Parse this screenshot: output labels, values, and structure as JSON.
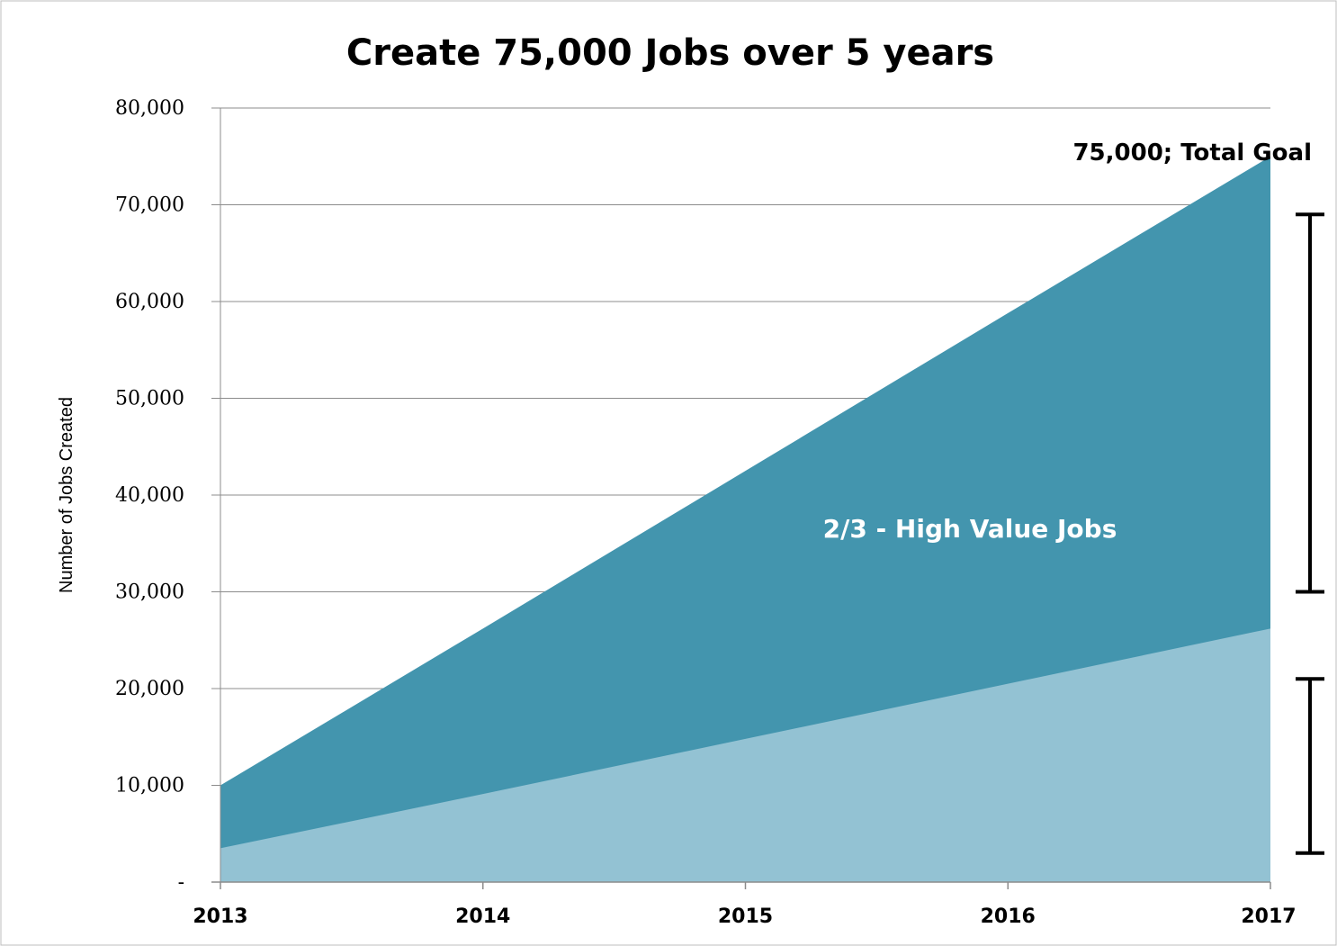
{
  "chart_data": {
    "type": "area",
    "title": "Create 75,000 Jobs over 5 years",
    "ylabel": "Number of Jobs Created",
    "xlabel": "",
    "categories": [
      "2013",
      "2014",
      "2015",
      "2016",
      "2017"
    ],
    "series": [
      {
        "values": [
          3500,
          9100,
          14800,
          20500,
          26200
        ],
        "color": "#93c2d3"
      },
      {
        "name": "2/3 - High Value Jobs",
        "values": [
          10000,
          26200,
          42500,
          58800,
          75000
        ],
        "color": "#4395ae"
      }
    ],
    "ylim": [
      0,
      80000
    ],
    "yticks": [
      {
        "value": 0,
        "label": "-"
      },
      {
        "value": 10000,
        "label": "10,000"
      },
      {
        "value": 20000,
        "label": "20,000"
      },
      {
        "value": 30000,
        "label": "30,000"
      },
      {
        "value": 40000,
        "label": "40,000"
      },
      {
        "value": 50000,
        "label": "50,000"
      },
      {
        "value": 60000,
        "label": "60,000"
      },
      {
        "value": 70000,
        "label": "70,000"
      },
      {
        "value": 80000,
        "label": "80,000"
      }
    ],
    "grid": true,
    "annotations": [
      {
        "text": "75,000; Total Goal",
        "x": "2017",
        "y": 75000
      },
      {
        "text": "2/3 - High Value Jobs",
        "x": "2015.85",
        "y": 36500
      }
    ],
    "brackets": [
      {
        "from": 30000,
        "to": 69000
      },
      {
        "from": 3000,
        "to": 21000
      }
    ]
  }
}
